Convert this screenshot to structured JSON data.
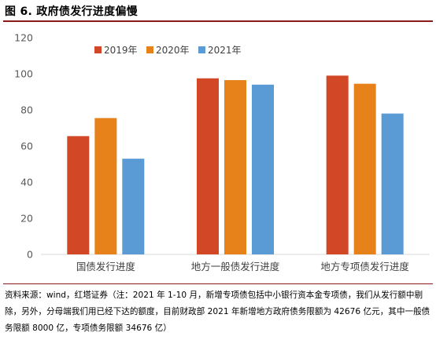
{
  "figure": {
    "title": "图 6. 政府债发行进度偏慢"
  },
  "source_note": "资料来源：wind，红塔证券（注：2021 年 1-10 月，新增专项债包括中小银行资本金专项债，我们从发行额中剔除，另外，分母端我们用已经下达的额度，目前财政部 2021 年新增地方政府债务限额为 42676 亿元，其中一般债务限额 8000 亿，专项债务限额 34676 亿）",
  "chart_data": {
    "type": "bar",
    "categories": [
      "国债发行进度",
      "地方一般债发行进度",
      "地方专项债发行进度"
    ],
    "series": [
      {
        "name": "2019年",
        "values": [
          65.5,
          97.5,
          99
        ],
        "color": "#D24726"
      },
      {
        "name": "2020年",
        "values": [
          75.5,
          96.5,
          94.5
        ],
        "color": "#E7821A"
      },
      {
        "name": "2021年",
        "values": [
          53,
          94,
          78
        ],
        "color": "#5B9BD5"
      }
    ],
    "yticks": [
      0,
      20,
      40,
      60,
      80,
      100,
      120
    ],
    "ylim": [
      0,
      120
    ],
    "legend_position": "top",
    "grid": false
  }
}
